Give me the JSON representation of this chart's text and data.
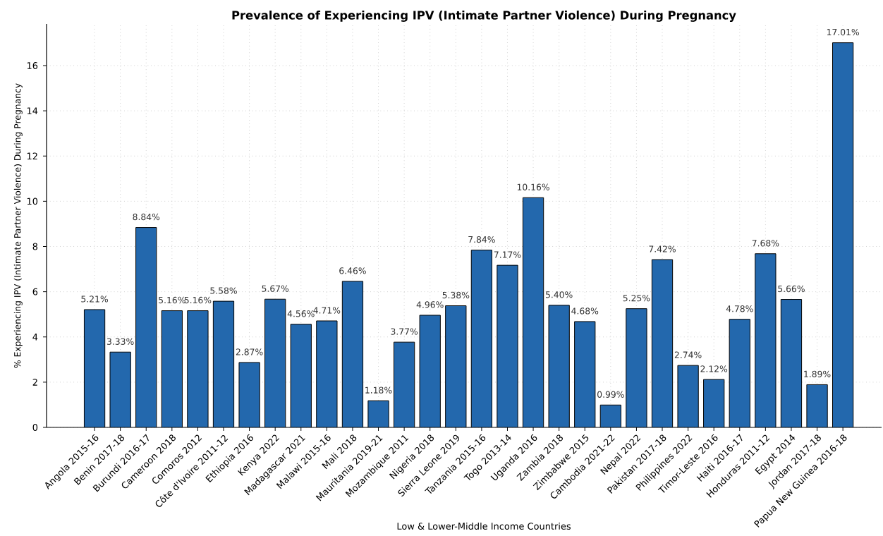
{
  "chart_data": {
    "type": "bar",
    "title": "Prevalence of Experiencing IPV (Intimate Partner Violence) During Pregnancy",
    "xlabel": "Low & Lower-Middle Income Countries",
    "ylabel": "% Experiencing IPV (Intimate Partner Violence) During Pregnancy",
    "categories": [
      "Angola 2015-16",
      "Benin 2017-18",
      "Burundi 2016-17",
      "Cameroon 2018",
      "Comoros 2012",
      "Côte d'Ivoire 2011-12",
      "Ethiopia 2016",
      "Kenya 2022",
      "Madagascar 2021",
      "Malawi 2015-16",
      "Mali 2018",
      "Mauritania 2019-21",
      "Mozambique 2011",
      "Nigeria 2018",
      "Sierra Leone 2019",
      "Tanzania 2015-16",
      "Togo 2013-14",
      "Uganda 2016",
      "Zambia 2018",
      "Zimbabwe 2015",
      "Cambodia 2021-22",
      "Nepal 2022",
      "Pakistan 2017-18",
      "Philippines 2022",
      "Timor-Leste 2016",
      "Haiti 2016-17",
      "Honduras 2011-12",
      "Egypt 2014",
      "Jordan 2017-18",
      "Papua New Guinea 2016-18"
    ],
    "values": [
      5.21,
      3.33,
      8.84,
      5.16,
      5.16,
      5.58,
      2.87,
      5.67,
      4.56,
      4.71,
      6.46,
      1.18,
      3.77,
      4.96,
      5.38,
      7.84,
      7.17,
      10.16,
      5.4,
      4.68,
      0.99,
      5.25,
      7.42,
      2.74,
      2.12,
      4.78,
      7.68,
      5.66,
      1.89,
      17.01
    ],
    "value_labels": [
      "5.21%",
      "3.33%",
      "8.84%",
      "5.16%",
      "5.16%",
      "5.58%",
      "2.87%",
      "5.67%",
      "4.56%",
      "4.71%",
      "6.46%",
      "1.18%",
      "3.77%",
      "4.96%",
      "5.38%",
      "7.84%",
      "7.17%",
      "10.16%",
      "5.40%",
      "4.68%",
      "0.99%",
      "5.25%",
      "7.42%",
      "2.74%",
      "2.12%",
      "4.78%",
      "7.68%",
      "5.66%",
      "1.89%",
      "17.01%"
    ],
    "color": "#2368ad",
    "ylim": [
      0,
      17.84
    ],
    "yticks": [
      0,
      2,
      4,
      6,
      8,
      10,
      12,
      14,
      16
    ],
    "grid": true
  }
}
